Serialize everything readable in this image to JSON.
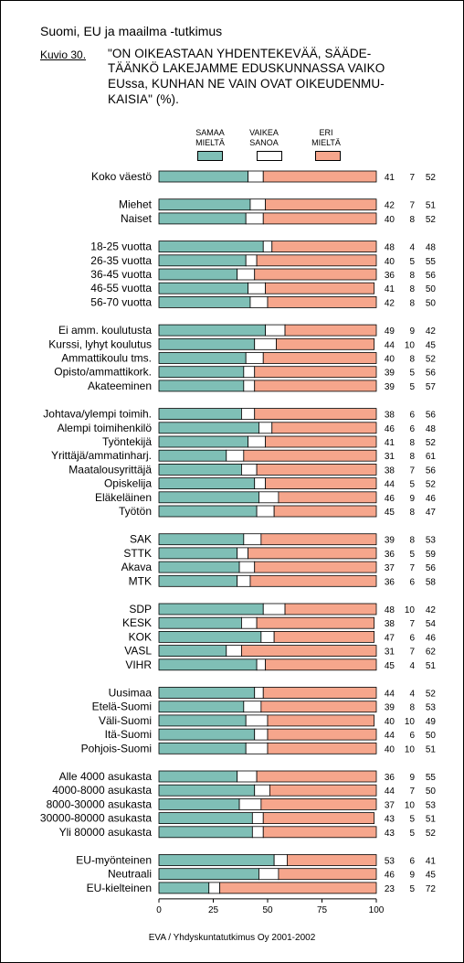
{
  "header": {
    "suptitle": "Suomi, EU ja maailma -tutkimus",
    "figure_label": "Kuvio 30.",
    "title_lines": [
      "\"ON OIKEASTAAN YHDENTEKEVÄÄ, SÄÄDE-",
      "TÄÄNKÖ LAKEJAMME EDUSKUNNASSA VAIKO",
      "EUssa, KUNHAN NE VAIN OVAT OIKEUDENMU-",
      "KAISIA\" (%)."
    ]
  },
  "legend": [
    {
      "line1": "SAMAA",
      "line2": "MIELTÄ",
      "color": "#7fbfb6"
    },
    {
      "line1": "VAIKEA",
      "line2": "SANOA",
      "color": "#ffffff"
    },
    {
      "line1": "ERI",
      "line2": "MIELTÄ",
      "color": "#f6a68c"
    }
  ],
  "footer": "EVA / Yhdyskuntatutkimus Oy 2001-2002",
  "chart_data": {
    "type": "bar",
    "orientation": "horizontal",
    "stacked": true,
    "xlim": [
      0,
      100
    ],
    "xticks": [
      "0",
      "25",
      "50",
      "75",
      "100"
    ],
    "series": [
      {
        "name": "SAMAA MIELTÄ",
        "color": "#7fbfb6"
      },
      {
        "name": "VAIKEA SANOA",
        "color": "#ffffff"
      },
      {
        "name": "ERI MIELTÄ",
        "color": "#f6a68c"
      }
    ],
    "groups": [
      {
        "rows": [
          [
            "Koko väestö",
            41,
            7,
            52
          ]
        ]
      },
      {
        "rows": [
          [
            "Miehet",
            42,
            7,
            51
          ],
          [
            "Naiset",
            40,
            8,
            52
          ]
        ]
      },
      {
        "rows": [
          [
            "18-25 vuotta",
            48,
            4,
            48
          ],
          [
            "26-35 vuotta",
            40,
            5,
            55
          ],
          [
            "36-45 vuotta",
            36,
            8,
            56
          ],
          [
            "46-55 vuotta",
            41,
            8,
            50
          ],
          [
            "56-70 vuotta",
            42,
            8,
            50
          ]
        ]
      },
      {
        "rows": [
          [
            "Ei amm. koulutusta",
            49,
            9,
            42
          ],
          [
            "Kurssi, lyhyt koulutus",
            44,
            10,
            45
          ],
          [
            "Ammattikoulu tms.",
            40,
            8,
            52
          ],
          [
            "Opisto/ammattikork.",
            39,
            5,
            56
          ],
          [
            "Akateeminen",
            39,
            5,
            57
          ]
        ]
      },
      {
        "rows": [
          [
            "Johtava/ylempi toimih.",
            38,
            6,
            56
          ],
          [
            "Alempi toimihenkilö",
            46,
            6,
            48
          ],
          [
            "Työntekijä",
            41,
            8,
            52
          ],
          [
            "Yrittäjä/ammatinharj.",
            31,
            8,
            61
          ],
          [
            "Maatalousyrittäjä",
            38,
            7,
            56
          ],
          [
            "Opiskelija",
            44,
            5,
            52
          ],
          [
            "Eläkeläinen",
            46,
            9,
            46
          ],
          [
            "Työtön",
            45,
            8,
            47
          ]
        ]
      },
      {
        "rows": [
          [
            "SAK",
            39,
            8,
            53
          ],
          [
            "STTK",
            36,
            5,
            59
          ],
          [
            "Akava",
            37,
            7,
            56
          ],
          [
            "MTK",
            36,
            6,
            58
          ]
        ]
      },
      {
        "rows": [
          [
            "SDP",
            48,
            10,
            42
          ],
          [
            "KESK",
            38,
            7,
            54
          ],
          [
            "KOK",
            47,
            6,
            46
          ],
          [
            "VASL",
            31,
            7,
            62
          ],
          [
            "VIHR",
            45,
            4,
            51
          ]
        ]
      },
      {
        "rows": [
          [
            "Uusimaa",
            44,
            4,
            52
          ],
          [
            "Etelä-Suomi",
            39,
            8,
            53
          ],
          [
            "Väli-Suomi",
            40,
            10,
            49
          ],
          [
            "Itä-Suomi",
            44,
            6,
            50
          ],
          [
            "Pohjois-Suomi",
            40,
            10,
            51
          ]
        ]
      },
      {
        "rows": [
          [
            "Alle 4000 asukasta",
            36,
            9,
            55
          ],
          [
            "4000-8000 asukasta",
            44,
            7,
            50
          ],
          [
            "8000-30000 asukasta",
            37,
            10,
            53
          ],
          [
            "30000-80000 asukasta",
            43,
            5,
            51
          ],
          [
            "Yli 80000 asukasta",
            43,
            5,
            52
          ]
        ]
      },
      {
        "rows": [
          [
            "EU-myönteinen",
            53,
            6,
            41
          ],
          [
            "Neutraali",
            46,
            9,
            45
          ],
          [
            "EU-kielteinen",
            23,
            5,
            72
          ]
        ]
      }
    ]
  }
}
